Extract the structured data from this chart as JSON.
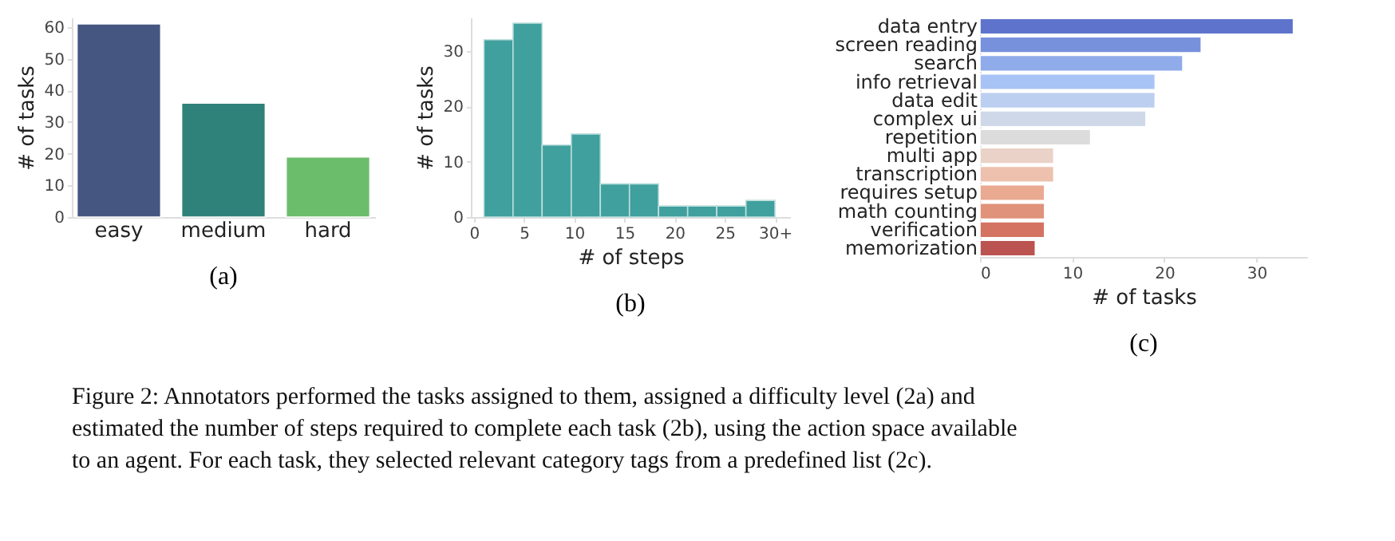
{
  "chart_data": [
    {
      "type": "bar",
      "title": "(a)",
      "ylabel": "# of tasks",
      "categories": [
        "easy",
        "medium",
        "hard"
      ],
      "values": [
        61,
        36,
        19
      ],
      "colors": [
        "#455681",
        "#2e827a",
        "#6bbd6b"
      ],
      "ylim": [
        0,
        63
      ],
      "yticks": [
        0,
        10,
        20,
        30,
        40,
        50,
        60
      ],
      "grid": false
    },
    {
      "type": "histogram",
      "title": "(b)",
      "xlabel": "# of steps",
      "ylabel": "# of tasks",
      "bins": [
        1,
        3.9,
        6.8,
        9.7,
        12.6,
        15.5,
        18.4,
        21.3,
        24.2,
        27.1,
        30
      ],
      "values": [
        32,
        35,
        13,
        15,
        6,
        6,
        2,
        2,
        2,
        3
      ],
      "color": "#40a09e",
      "xlim": [
        -0.3,
        31.5
      ],
      "xticks": [
        0,
        5,
        10,
        15,
        20,
        25,
        {
          "value": 30,
          "label": "30+"
        }
      ],
      "ylim": [
        0,
        36
      ],
      "yticks": [
        0,
        10,
        20,
        30
      ],
      "grid": false
    },
    {
      "type": "bar",
      "orientation": "horizontal",
      "title": "(c)",
      "xlabel": "# of tasks",
      "categories": [
        "data entry",
        "screen reading",
        "search",
        "info retrieval",
        "data edit",
        "complex ui",
        "repetition",
        "multi app",
        "transcription",
        "requires setup",
        "math counting",
        "verification",
        "memorization"
      ],
      "values": [
        34,
        24,
        22,
        19,
        19,
        18,
        12,
        8,
        8,
        7,
        7,
        7,
        6
      ],
      "colors": [
        "#5e74cc",
        "#7891dc",
        "#8fabea",
        "#a8c3f5",
        "#bccff0",
        "#cfd8e8",
        "#dcdcdc",
        "#ead2c8",
        "#edc1ad",
        "#eaa991",
        "#e0927b",
        "#d47362",
        "#bb5350"
      ],
      "xlim": [
        0,
        35.5
      ],
      "xticks": [
        0,
        10,
        20,
        30
      ],
      "grid": false,
      "annotations": [
        "Figure 2: Annotators performed the tasks assigned to them, assigned a difficulty level (2a) and estimated the number of steps required to complete each task (2b), using the action space available to an agent. For each task, they selected relevant category tags from a predefined list (2c)."
      ]
    }
  ]
}
